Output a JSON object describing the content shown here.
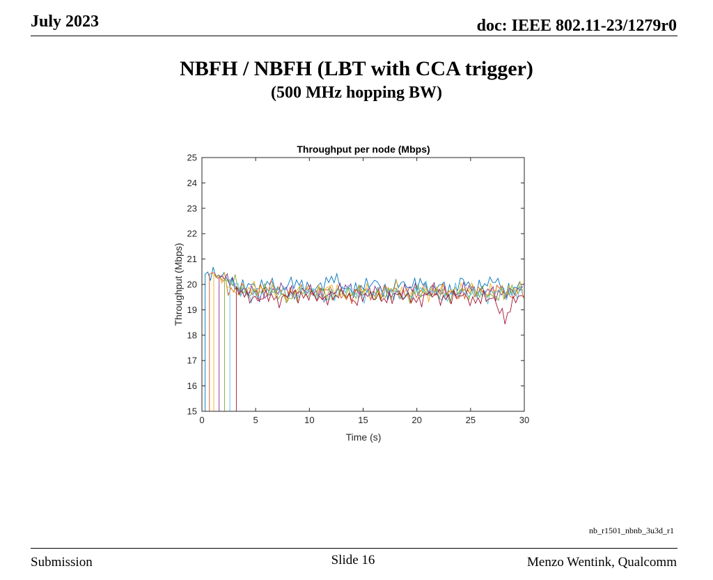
{
  "header": {
    "date": "July 2023",
    "doc": "doc: IEEE 802.11-23/1279r0"
  },
  "slide": {
    "title": "NBFH / NBFH (LBT with CCA trigger)",
    "subtitle": "(500 MHz hopping BW)",
    "file_label": "nb_r1501_nbnb_3u3d_r1"
  },
  "footer": {
    "left": "Submission",
    "center": "Slide 16",
    "right": "Menzo Wentink, Qualcomm"
  },
  "chart_data": {
    "type": "line",
    "title": "Throughput per node (Mbps)",
    "xlabel": "Time (s)",
    "ylabel": "Throughput (Mbps)",
    "xlim": [
      0,
      30
    ],
    "ylim": [
      15,
      25
    ],
    "xticks": [
      0,
      5,
      10,
      15,
      20,
      25,
      30
    ],
    "yticks": [
      15,
      16,
      17,
      18,
      19,
      20,
      21,
      22,
      23,
      24,
      25
    ],
    "grid": false,
    "legend": "none",
    "series": [
      {
        "color": "#0072BD",
        "start": 0.3,
        "values": [
          20.4,
          20.4,
          20.3,
          19.8,
          20.0,
          19.9,
          20.1,
          19.7,
          20.1,
          20.0,
          19.8,
          20.0,
          20.3,
          19.8,
          19.8,
          20.0,
          20.1,
          19.6,
          20.1,
          19.9,
          20.1,
          19.8,
          20.0,
          19.7,
          20.2,
          19.8,
          20.0,
          20.2,
          19.7,
          19.9,
          20.1,
          20.3
        ]
      },
      {
        "color": "#D95319",
        "start": 0.7,
        "values": [
          20.4,
          20.3,
          19.7,
          19.9,
          19.6,
          19.8,
          20.0,
          19.5,
          19.7,
          19.9,
          19.5,
          19.8,
          19.7,
          19.4,
          19.9,
          19.6,
          19.7,
          19.8,
          19.6,
          19.5,
          19.9,
          19.7,
          19.8,
          19.5,
          19.7,
          19.8,
          19.6,
          19.9,
          19.5,
          19.7,
          19.8
        ]
      },
      {
        "color": "#EDB120",
        "start": 1.1,
        "values": [
          20.4,
          20.2,
          19.6,
          19.8,
          19.9,
          19.7,
          19.8,
          19.6,
          19.9,
          19.7,
          19.8,
          19.9,
          19.6,
          19.7,
          19.8,
          19.6,
          19.8,
          19.9,
          19.7,
          19.8,
          19.6,
          19.9,
          19.7,
          19.8,
          19.9,
          19.6,
          19.8,
          19.7,
          19.8,
          19.9
        ]
      },
      {
        "color": "#7E2F8E",
        "start": 1.6,
        "values": [
          20.3,
          20.2,
          19.7,
          19.8,
          19.5,
          19.7,
          19.9,
          19.6,
          19.8,
          19.7,
          19.5,
          19.8,
          19.9,
          19.6,
          19.7,
          19.8,
          19.6,
          19.7,
          19.9,
          19.5,
          19.8,
          19.7,
          19.6,
          19.9,
          19.7,
          19.8,
          19.6,
          19.7,
          19.8
        ]
      },
      {
        "color": "#77AC30",
        "start": 2.1,
        "values": [
          20.2,
          20.1,
          19.6,
          19.7,
          19.8,
          19.6,
          19.4,
          19.7,
          19.6,
          19.8,
          19.5,
          19.7,
          19.6,
          19.8,
          19.5,
          19.6,
          19.7,
          19.4,
          19.8,
          19.6,
          19.7,
          19.5,
          19.8,
          19.6,
          19.7,
          19.5,
          19.6,
          19.8
        ]
      },
      {
        "color": "#4DBEEE",
        "start": 2.6,
        "values": [
          20.2,
          19.8,
          19.5,
          19.6,
          19.9,
          19.7,
          19.5,
          19.8,
          19.6,
          19.4,
          19.7,
          19.9,
          19.5,
          19.6,
          19.8,
          19.7,
          19.5,
          19.6,
          19.9,
          19.7,
          19.4,
          19.8,
          19.6,
          19.7,
          19.5,
          19.8,
          19.6,
          19.7
        ]
      },
      {
        "color": "#A2142F",
        "start": 3.2,
        "values": [
          19.9,
          19.5,
          19.4,
          19.6,
          19.3,
          19.7,
          19.5,
          19.6,
          19.4,
          19.5,
          19.7,
          19.3,
          19.6,
          19.5,
          19.4,
          19.6,
          19.5,
          19.3,
          19.7,
          19.4,
          19.5,
          19.6,
          19.3,
          19.5,
          19.4,
          18.6,
          19.5
        ]
      }
    ]
  }
}
